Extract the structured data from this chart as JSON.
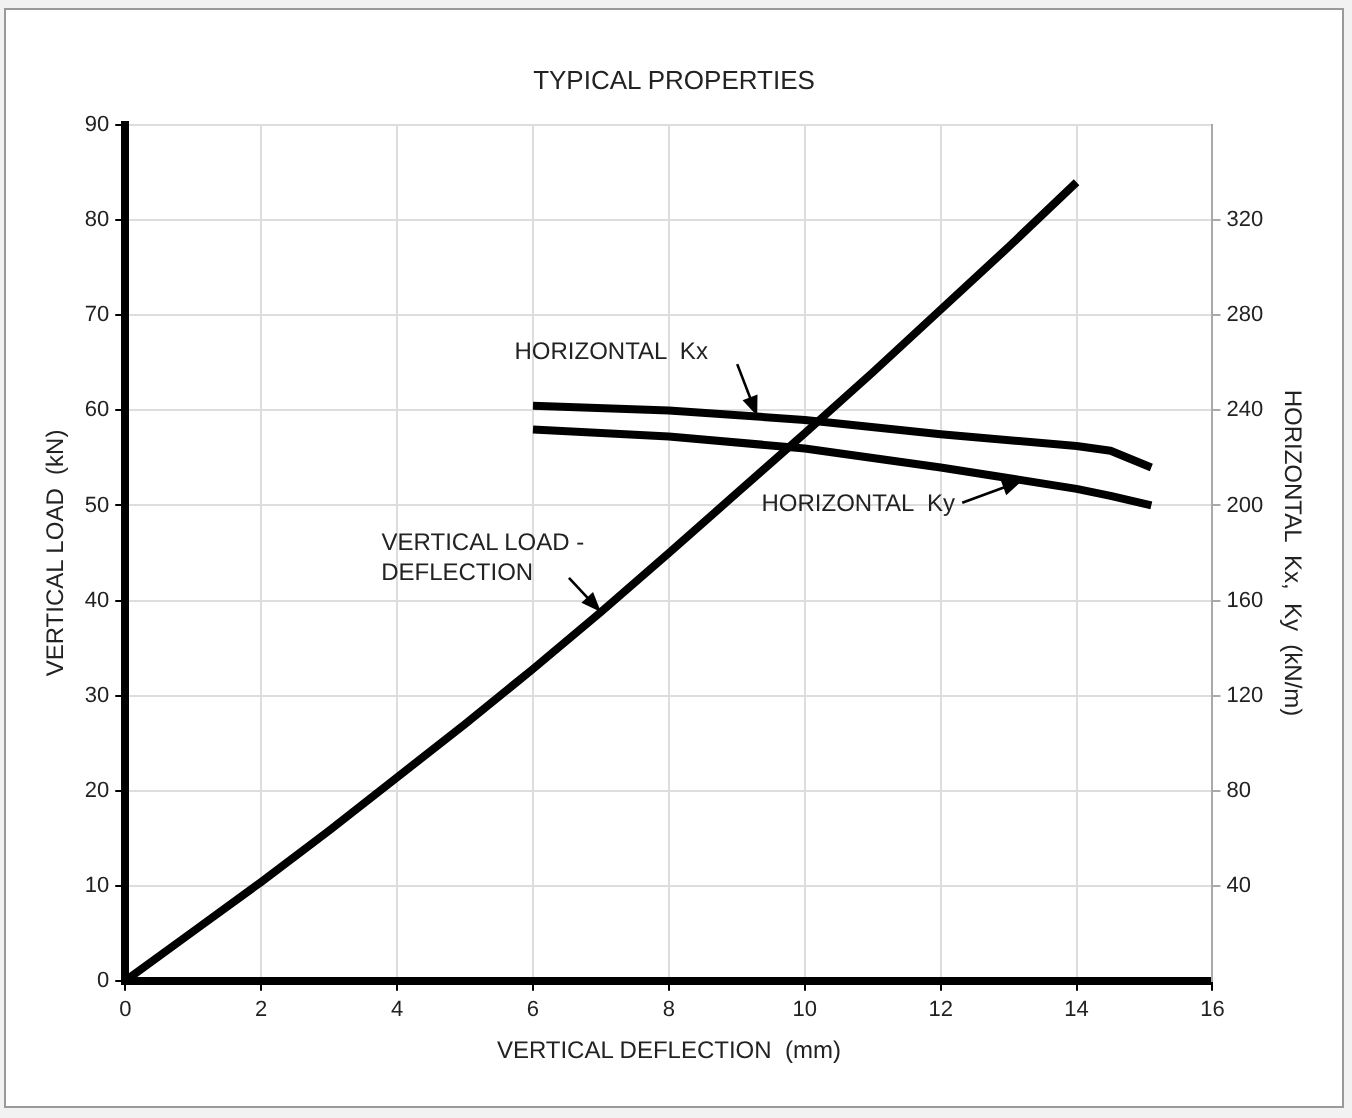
{
  "chart_data": {
    "type": "line",
    "title": "TYPICAL PROPERTIES",
    "xlabel": "VERTICAL DEFLECTION  (mm)",
    "ylabel": "VERTICAL LOAD  (kN)",
    "y2label": "HORIZONTAL  Kx,  Ky  (kN/m)",
    "xlim": [
      0,
      16
    ],
    "xticks": [
      0,
      2,
      4,
      6,
      8,
      10,
      12,
      14,
      16
    ],
    "ylim": [
      0,
      90
    ],
    "yticks": [
      0,
      10,
      20,
      30,
      40,
      50,
      60,
      70,
      80,
      90
    ],
    "y2lim": [
      0,
      360
    ],
    "y2ticks": [
      40,
      80,
      120,
      160,
      200,
      240,
      280,
      320
    ],
    "grid": true,
    "legend": false,
    "marker": "none",
    "line_style": "solid",
    "series": [
      {
        "color": "#000000",
        "x": [
          0,
          1,
          2,
          3,
          4,
          5,
          6,
          7,
          8,
          9,
          10,
          11,
          12,
          13,
          14
        ],
        "values": [
          0,
          5.2,
          10.4,
          15.8,
          21.4,
          27,
          32.8,
          38.8,
          45,
          51.3,
          57.6,
          64,
          70.6,
          77.2,
          84
        ]
      },
      {
        "color": "#000000",
        "axis": "y2",
        "x": [
          6,
          8,
          10,
          12,
          14,
          14.5,
          15.1
        ],
        "values": [
          242,
          240,
          236,
          230,
          225,
          223,
          216
        ]
      },
      {
        "color": "#000000",
        "axis": "y2",
        "x": [
          6,
          8,
          10,
          12,
          14,
          14.5,
          15.1
        ],
        "values": [
          232,
          229,
          224,
          216,
          207,
          204,
          200
        ]
      }
    ],
    "annotations": [
      {
        "text": "HORIZONTAL  Kx",
        "x": 9.3,
        "y": 59.4
      },
      {
        "text": "HORIZONTAL  Ky",
        "x": 13.2,
        "y": 52.6
      },
      {
        "text": "VERTICAL LOAD -\nDEFLECTION",
        "x": 7,
        "y": 38.8
      }
    ]
  }
}
